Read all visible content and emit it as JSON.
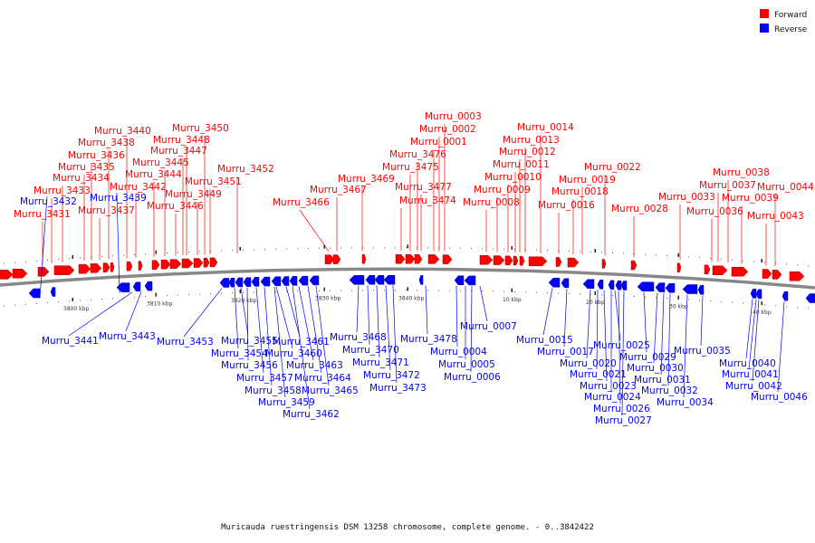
{
  "colors": {
    "forward": "#ff0000",
    "reverse": "#0000ff",
    "backbone": "#888888"
  },
  "legend": [
    {
      "label": "Forward",
      "color": "#ff0000"
    },
    {
      "label": "Reverse",
      "color": "#0000ff"
    }
  ],
  "caption": "Muricauda ruestringensis DSM 13258 chromosome, complete genome. - 0..3842422",
  "ticks": [
    "3800 kbp",
    "3810 kbp",
    "3820 kbp",
    "3830 kbp",
    "3840 kbp",
    "10 kbp",
    "20 kbp",
    "30 kbp",
    "40 kbp"
  ],
  "forward_labels": [
    "Murru_3431",
    "Murru_3433",
    "Murru_3434",
    "Murru_3435",
    "Murru_3436",
    "Murru_3437",
    "Murru_3438",
    "Murru_3440",
    "Murru_3442",
    "Murru_3444",
    "Murru_3445",
    "Murru_3446",
    "Murru_3447",
    "Murru_3448",
    "Murru_3449",
    "Murru_3450",
    "Murru_3451",
    "Murru_3452",
    "Murru_3466",
    "Murru_3467",
    "Murru_3469",
    "Murru_3474",
    "Murru_3475",
    "Murru_3476",
    "Murru_3477",
    "Murru_0001",
    "Murru_0002",
    "Murru_0003",
    "Murru_0008",
    "Murru_0009",
    "Murru_0010",
    "Murru_0011",
    "Murru_0012",
    "Murru_0013",
    "Murru_0014",
    "Murru_0016",
    "Murru_0018",
    "Murru_0019",
    "Murru_0022",
    "Murru_0028",
    "Murru_0033",
    "Murru_0036",
    "Murru_0037",
    "Murru_0038",
    "Murru_0039",
    "Murru_0043",
    "Murru_0044"
  ],
  "reverse_labels": [
    "Murru_3432",
    "Murru_3439",
    "Murru_3441",
    "Murru_3443",
    "Murru_3453",
    "Murru_3454",
    "Murru_3455",
    "Murru_3456",
    "Murru_3457",
    "Murru_3458",
    "Murru_3459",
    "Murru_3460",
    "Murru_3461",
    "Murru_3462",
    "Murru_3463",
    "Murru_3464",
    "Murru_3465",
    "Murru_3468",
    "Murru_3470",
    "Murru_3471",
    "Murru_3472",
    "Murru_3473",
    "Murru_3478",
    "Murru_0004",
    "Murru_0005",
    "Murru_0006",
    "Murru_0007",
    "Murru_0015",
    "Murru_0017",
    "Murru_0020",
    "Murru_0021",
    "Murru_0023",
    "Murru_0024",
    "Murru_0025",
    "Murru_0026",
    "Murru_0027",
    "Murru_0029",
    "Murru_0030",
    "Murru_0031",
    "Murru_0032",
    "Murru_0034",
    "Murru_0035",
    "Murru_0040",
    "Murru_0041",
    "Murru_0042",
    "Murru_0046"
  ]
}
